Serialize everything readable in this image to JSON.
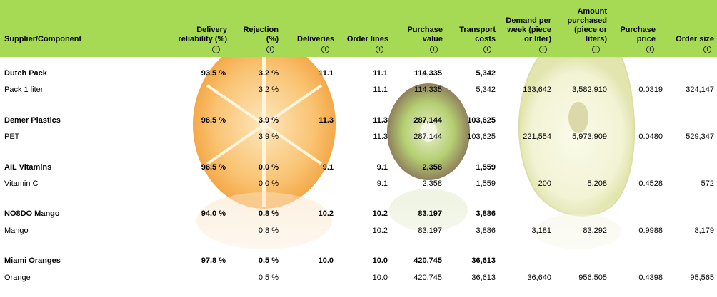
{
  "columns": [
    {
      "label": "Supplier/Component"
    },
    {
      "label": "Delivery\nreliability (%)"
    },
    {
      "label": "Rejection\n(%)"
    },
    {
      "label": "Deliveries"
    },
    {
      "label": "Order lines"
    },
    {
      "label": "Purchase\nvalue"
    },
    {
      "label": "Transport\ncosts"
    },
    {
      "label": "Demand per\nweek (piece\nor liter)"
    },
    {
      "label": "Amount\npurchased\n(piece or\nliters)"
    },
    {
      "label": "Purchase\nprice"
    },
    {
      "label": "Order size"
    }
  ],
  "info_glyph": "i",
  "suppliers": [
    {
      "name": "Dutch Pack",
      "reliability": "93.5 %",
      "rejection": "3.2 %",
      "deliveries": "11.1",
      "order_lines": "11.1",
      "purchase_value": "114,335",
      "transport": "5,342",
      "component": {
        "name": "Pack 1 liter",
        "rejection": "3.2 %",
        "order_lines": "11.1",
        "purchase_value": "114,335",
        "transport": "5,342",
        "demand": "133,642",
        "amount": "3,582,910",
        "price": "0.0319",
        "order_size": "324,147"
      }
    },
    {
      "name": "Demer Plastics",
      "reliability": "96.5 %",
      "rejection": "3.9 %",
      "deliveries": "11.3",
      "order_lines": "11.3",
      "purchase_value": "287,144",
      "transport": "103,625",
      "component": {
        "name": "PET",
        "rejection": "3.9 %",
        "order_lines": "11.3",
        "purchase_value": "287,144",
        "transport": "103,625",
        "demand": "221,554",
        "amount": "5,973,909",
        "price": "0.0480",
        "order_size": "529,347"
      }
    },
    {
      "name": "AIL Vitamins",
      "reliability": "96.5 %",
      "rejection": "0.0 %",
      "deliveries": "9.1",
      "order_lines": "9.1",
      "purchase_value": "2,358",
      "transport": "1,559",
      "component": {
        "name": "Vitamin C",
        "rejection": "0.0 %",
        "order_lines": "9.1",
        "purchase_value": "2,358",
        "transport": "1,559",
        "demand": "200",
        "amount": "5,208",
        "price": "0.4528",
        "order_size": "572"
      }
    },
    {
      "name": "NO8DO Mango",
      "reliability": "94.0 %",
      "rejection": "0.8 %",
      "deliveries": "10.2",
      "order_lines": "10.2",
      "purchase_value": "83,197",
      "transport": "3,886",
      "component": {
        "name": "Mango",
        "rejection": "0.8 %",
        "order_lines": "10.2",
        "purchase_value": "83,197",
        "transport": "3,886",
        "demand": "3,181",
        "amount": "83,292",
        "price": "0.9988",
        "order_size": "8,179"
      }
    },
    {
      "name": "Miami Oranges",
      "reliability": "97.8 %",
      "rejection": "0.5 %",
      "deliveries": "10.0",
      "order_lines": "10.0",
      "purchase_value": "420,745",
      "transport": "36,613",
      "component": {
        "name": "Orange",
        "rejection": "0.5 %",
        "order_lines": "10.0",
        "purchase_value": "420,745",
        "transport": "36,613",
        "demand": "36,640",
        "amount": "956,505",
        "price": "0.4398",
        "order_size": "95,565"
      }
    }
  ],
  "colors": {
    "header": "#a6da54",
    "orange": "#f7a53a",
    "kiwi": "#9bbf3c",
    "apple": "#f1f2d2"
  }
}
